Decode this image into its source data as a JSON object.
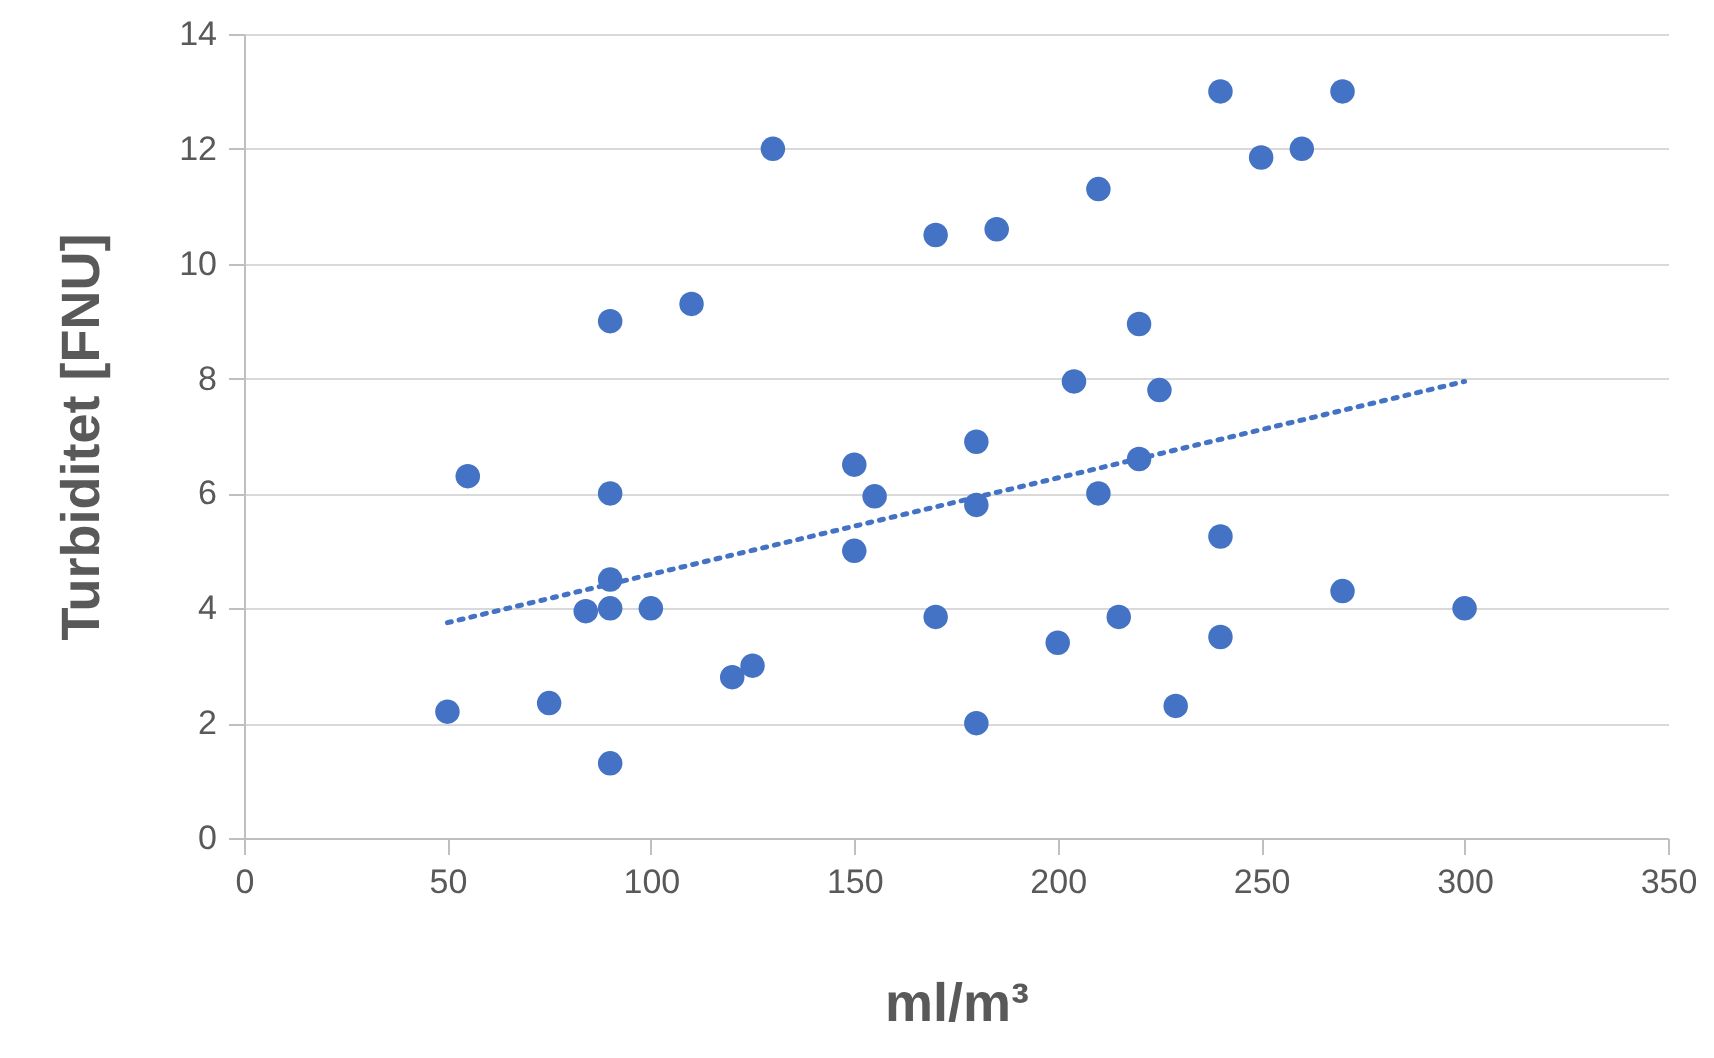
{
  "chart_data": {
    "type": "scatter",
    "xlabel": "ml/m³",
    "ylabel": "Turbiditet [FNU]",
    "xlim": [
      0,
      350
    ],
    "xticks": [
      0,
      50,
      100,
      150,
      200,
      250,
      300,
      350
    ],
    "ylim": [
      0,
      14
    ],
    "yticks": [
      0,
      2,
      4,
      6,
      8,
      10,
      12,
      14
    ],
    "grid": "y",
    "marker": "circle",
    "series": [
      {
        "color": "#4472c4",
        "x": [
          130,
          170,
          110,
          90,
          55,
          90,
          90,
          84,
          90,
          100,
          150,
          155,
          150,
          170,
          120,
          125,
          75,
          50,
          90,
          180,
          180,
          180,
          240,
          270,
          250,
          260,
          210,
          185,
          220,
          204,
          225,
          220,
          210,
          240,
          270,
          300,
          215,
          200,
          240,
          229
        ],
        "values": [
          12.0,
          10.5,
          9.3,
          9.0,
          6.3,
          6.0,
          4.5,
          3.95,
          4.0,
          4.0,
          6.5,
          5.95,
          5.0,
          3.85,
          2.8,
          3.0,
          2.35,
          2.2,
          1.3,
          6.9,
          5.8,
          2.0,
          13.0,
          13.0,
          11.85,
          12.0,
          11.3,
          10.6,
          8.95,
          7.95,
          7.8,
          6.6,
          6.0,
          5.25,
          4.3,
          4.0,
          3.85,
          3.4,
          3.5,
          2.3
        ]
      },
      {
        "type": "line",
        "color": "#4472c4",
        "line_style": "dotted",
        "marker": "none",
        "x": [
          50,
          300
        ],
        "values": [
          3.75,
          7.95
        ]
      }
    ]
  }
}
